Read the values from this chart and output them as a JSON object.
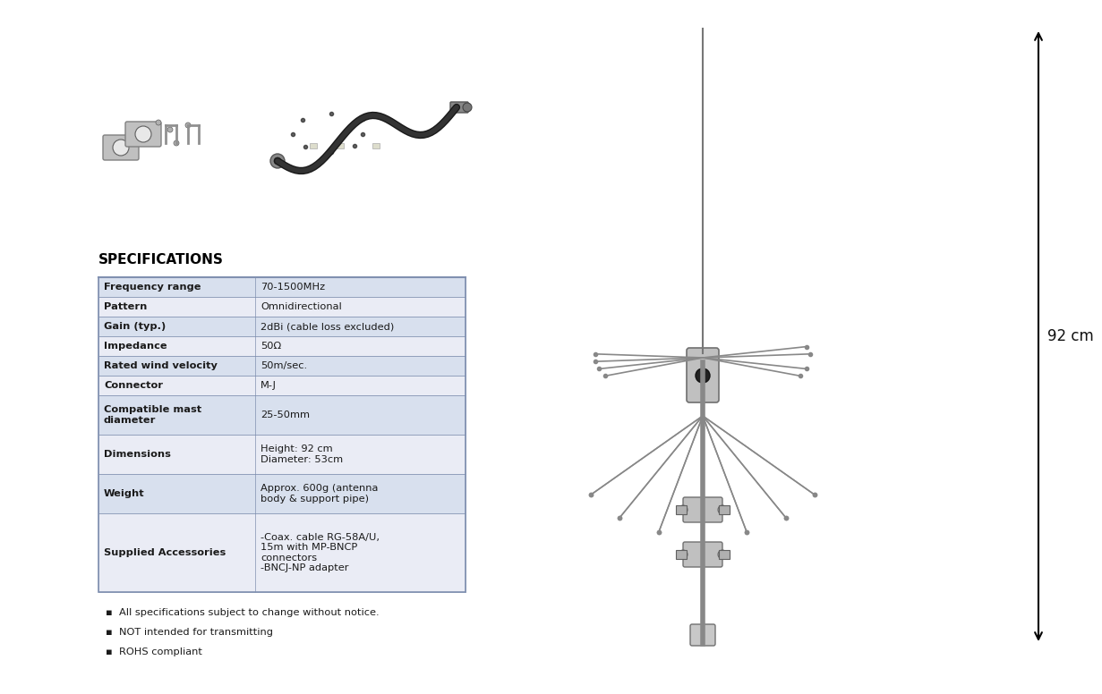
{
  "title": "SPECIFICATIONS",
  "table_rows": [
    [
      "Frequency range",
      "70-1500MHz"
    ],
    [
      "Pattern",
      "Omnidirectional"
    ],
    [
      "Gain (typ.)",
      "2dBi (cable loss excluded)"
    ],
    [
      "Impedance",
      "50Ω"
    ],
    [
      "Rated wind velocity",
      "50m/sec."
    ],
    [
      "Connector",
      "M-J"
    ],
    [
      "Compatible mast\ndiameter",
      "25-50mm"
    ],
    [
      "Dimensions",
      "Height: 92 cm\nDiameter: 53cm"
    ],
    [
      "Weight",
      "Approx. 600g (antenna\nbody & support pipe)"
    ],
    [
      "Supplied Accessories",
      "-Coax. cable RG-58A/U,\n15m with MP-BNCP\nconnectors\n-BNCJ-NP adapter"
    ]
  ],
  "footnotes": [
    "All specifications subject to change without notice.",
    "NOT intended for transmitting",
    "ROHS compliant"
  ],
  "dim_label": "92 cm",
  "row_bg_odd": "#d8e0ee",
  "row_bg_even": "#eaecf5",
  "text_color": "#1a1a1a",
  "border_color": "#8090b0",
  "title_color": "#000000",
  "bg_color": "#ffffff",
  "antenna_color": "#888888",
  "hub_color": "#aaaaaa",
  "mast_color": "#999999"
}
